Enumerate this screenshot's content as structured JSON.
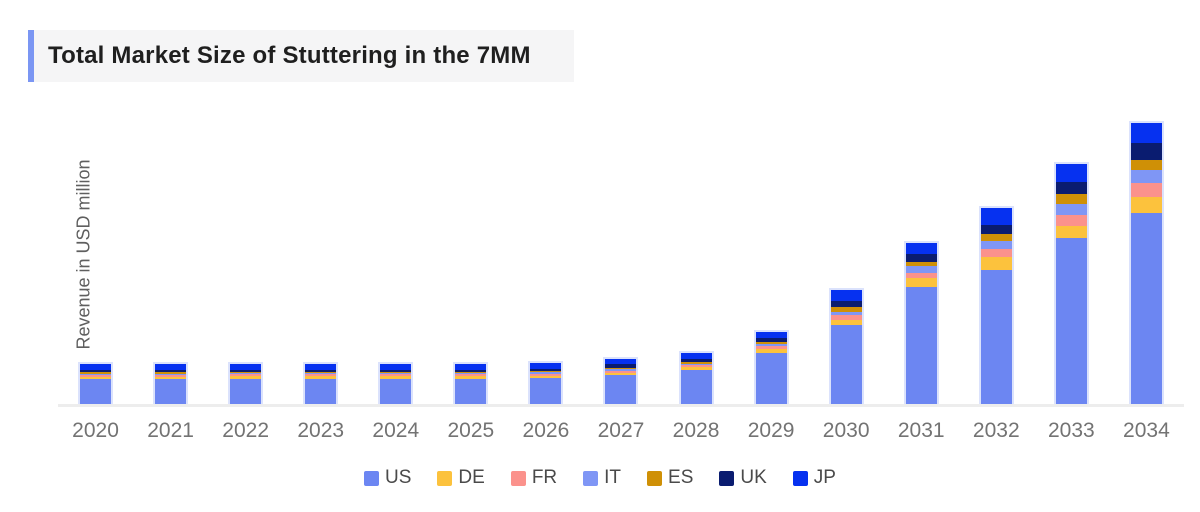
{
  "header": {
    "title": "Total Market Size of Stuttering in the 7MM"
  },
  "chart": {
    "ylabel": "Revenue in USD million"
  },
  "colors": {
    "title_accent": "#7b96f3",
    "title_background": "#f5f5f6",
    "axis_line": "#ededed",
    "bar_border": "#dbe2fc"
  },
  "chart_data": {
    "type": "bar",
    "stacked": true,
    "title": "Total Market Size of Stuttering in the 7MM",
    "xlabel": "",
    "ylabel": "Revenue in USD million",
    "categories": [
      "2020",
      "2021",
      "2022",
      "2023",
      "2024",
      "2025",
      "2026",
      "2027",
      "2028",
      "2029",
      "2030",
      "2031",
      "2032",
      "2033",
      "2034"
    ],
    "series": [
      {
        "name": "US",
        "color": "#6c86f2",
        "values": [
          25,
          25,
          25.5,
          25.5,
          25.5,
          25.5,
          26,
          29,
          34,
          51,
          79,
          117,
          134,
          166,
          191
        ]
      },
      {
        "name": "DE",
        "color": "#fcc23d",
        "values": [
          2.5,
          2.5,
          2.5,
          2.5,
          2.5,
          2.5,
          2.5,
          2.5,
          3,
          4.5,
          5,
          9,
          13,
          12,
          16
        ]
      },
      {
        "name": "FR",
        "color": "#fb928c",
        "values": [
          1.8,
          1.8,
          1.8,
          1.8,
          1.8,
          1.8,
          1.8,
          2,
          2,
          3,
          5,
          5,
          8,
          11,
          14
        ]
      },
      {
        "name": "IT",
        "color": "#7f96f5",
        "values": [
          1.2,
          1.2,
          1.2,
          1.2,
          1.2,
          1.2,
          1.3,
          1.5,
          1.5,
          2,
          3.5,
          7,
          8,
          11,
          13
        ]
      },
      {
        "name": "ES",
        "color": "#cf9006",
        "values": [
          1.2,
          1.2,
          1.2,
          1.2,
          1.2,
          1.2,
          1.3,
          1.5,
          1.5,
          2,
          4.5,
          4,
          7,
          10,
          10
        ]
      },
      {
        "name": "UK",
        "color": "#0a1c70",
        "values": [
          2.3,
          2.3,
          2.3,
          2.3,
          2.3,
          2.3,
          2.5,
          3.3,
          3,
          4,
          6.5,
          8,
          9,
          12,
          17
        ]
      },
      {
        "name": "JP",
        "color": "#0631f0",
        "values": [
          6,
          6,
          6,
          6,
          6,
          6,
          6,
          5,
          6,
          6,
          10.5,
          11,
          17,
          18,
          20
        ]
      }
    ],
    "ylim": [
      0,
      300
    ],
    "y_axis_ticks": "none",
    "values_estimated": true,
    "grid": false,
    "legend_position": "bottom"
  }
}
